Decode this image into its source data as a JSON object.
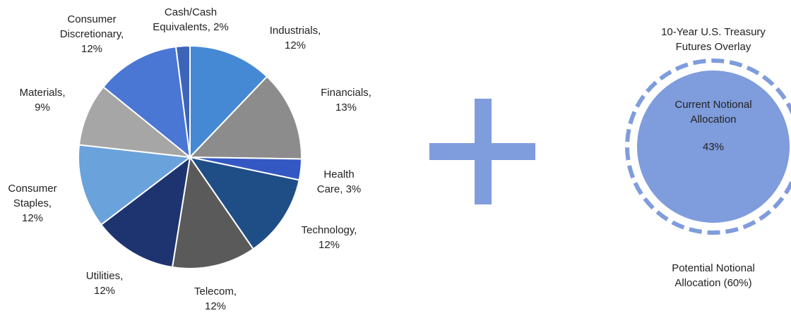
{
  "chart_data": {
    "type": "pie",
    "labels": [
      "Industrials, 12%",
      "Financials, 13%",
      "Health Care, 3%",
      "Technology, 12%",
      "Telecom, 12%",
      "Utilities, 12%",
      "Consumer Staples, 12%",
      "Materials, 9%",
      "Consumer Discretionary, 12%",
      "Cash/Cash Equivalents, 2%"
    ],
    "values": [
      12,
      13,
      3,
      12,
      12,
      12,
      12,
      9,
      12,
      2
    ],
    "colors": [
      "#4589d4",
      "#8c8c8c",
      "#3358c4",
      "#1f4e87",
      "#5a5a5a",
      "#1e3470",
      "#6aa2dc",
      "#a6a6a6",
      "#4a76d4",
      "#3c64b8"
    ]
  },
  "overlay": {
    "title": "10-Year U.S. Treasury Futures Overlay",
    "current_label": "Current Notional Allocation",
    "current_value": "43%",
    "potential_label": "Potential Notional Allocation (60%)"
  }
}
